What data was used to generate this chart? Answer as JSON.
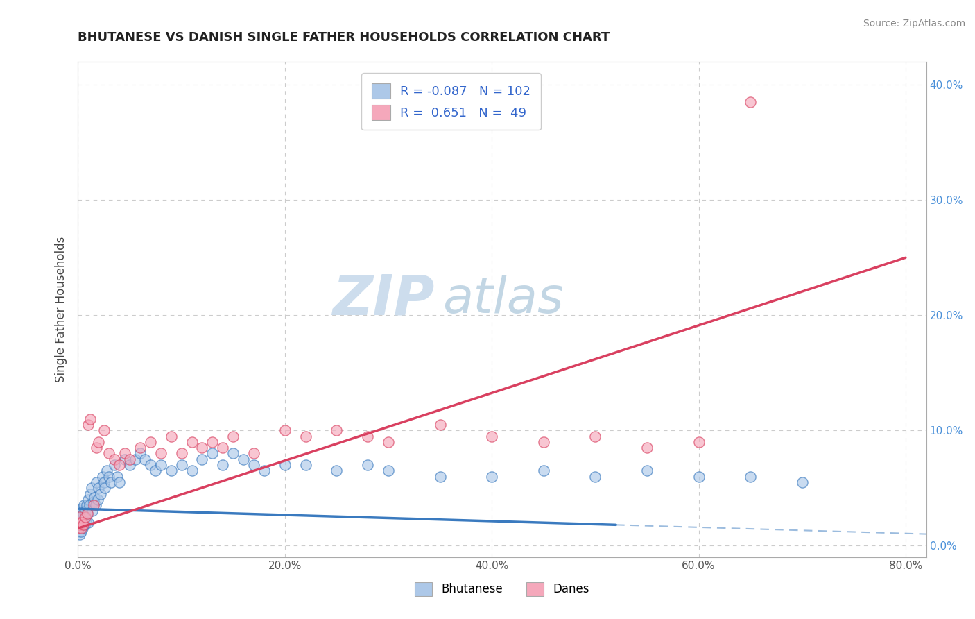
{
  "title": "BHUTANESE VS DANISH SINGLE FATHER HOUSEHOLDS CORRELATION CHART",
  "source": "Source: ZipAtlas.com",
  "xlabel_vals": [
    0.0,
    20.0,
    40.0,
    60.0,
    80.0
  ],
  "ylabel": "Single Father Households",
  "ylabel_vals": [
    0.0,
    10.0,
    20.0,
    30.0,
    40.0
  ],
  "xlim": [
    0.0,
    82.0
  ],
  "ylim": [
    -1.0,
    42.0
  ],
  "bhutanese_color": "#adc8e8",
  "danes_color": "#f5a8bb",
  "bhutanese_line_color": "#3a7abf",
  "danes_line_color": "#d94060",
  "bhutanese_R": -0.087,
  "bhutanese_N": 102,
  "danes_R": 0.651,
  "danes_N": 49,
  "legend_text_color": "#3366cc",
  "watermark_zip": "ZIP",
  "watermark_atlas": "atlas",
  "watermark_color_zip": "#ccdcec",
  "watermark_color_atlas": "#b8cfe0",
  "background_color": "#ffffff",
  "grid_color": "#cccccc",
  "bhutanese_scatter_x": [
    0.05,
    0.08,
    0.1,
    0.12,
    0.15,
    0.18,
    0.2,
    0.22,
    0.25,
    0.28,
    0.3,
    0.32,
    0.35,
    0.38,
    0.4,
    0.42,
    0.45,
    0.48,
    0.5,
    0.55,
    0.6,
    0.65,
    0.7,
    0.75,
    0.8,
    0.85,
    0.9,
    0.95,
    1.0,
    1.1,
    1.2,
    1.3,
    1.4,
    1.5,
    1.6,
    1.7,
    1.8,
    1.9,
    2.0,
    2.2,
    2.4,
    2.5,
    2.6,
    2.8,
    3.0,
    3.2,
    3.5,
    3.8,
    4.0,
    4.5,
    5.0,
    5.5,
    6.0,
    6.5,
    7.0,
    7.5,
    8.0,
    9.0,
    10.0,
    11.0,
    12.0,
    13.0,
    14.0,
    15.0,
    16.0,
    17.0,
    18.0,
    20.0,
    22.0,
    25.0,
    28.0,
    30.0,
    35.0,
    40.0,
    45.0,
    50.0,
    55.0,
    60.0,
    65.0,
    70.0
  ],
  "bhutanese_scatter_y": [
    1.5,
    2.0,
    1.2,
    2.5,
    1.8,
    2.2,
    1.0,
    3.0,
    2.0,
    1.5,
    2.8,
    1.2,
    2.5,
    1.8,
    3.2,
    2.0,
    1.5,
    2.8,
    2.2,
    3.5,
    2.0,
    1.8,
    3.0,
    2.5,
    2.0,
    3.5,
    2.8,
    2.0,
    4.0,
    3.5,
    4.5,
    5.0,
    3.0,
    3.8,
    4.2,
    3.5,
    5.5,
    4.0,
    5.0,
    4.5,
    6.0,
    5.5,
    5.0,
    6.5,
    6.0,
    5.5,
    7.0,
    6.0,
    5.5,
    7.5,
    7.0,
    7.5,
    8.0,
    7.5,
    7.0,
    6.5,
    7.0,
    6.5,
    7.0,
    6.5,
    7.5,
    8.0,
    7.0,
    8.0,
    7.5,
    7.0,
    6.5,
    7.0,
    7.0,
    6.5,
    7.0,
    6.5,
    6.0,
    6.0,
    6.5,
    6.0,
    6.5,
    6.0,
    6.0,
    5.5
  ],
  "danes_scatter_x": [
    0.05,
    0.1,
    0.15,
    0.2,
    0.25,
    0.3,
    0.4,
    0.5,
    0.7,
    0.9,
    1.0,
    1.2,
    1.5,
    1.8,
    2.0,
    2.5,
    3.0,
    3.5,
    4.0,
    4.5,
    5.0,
    6.0,
    7.0,
    8.0,
    9.0,
    10.0,
    11.0,
    12.0,
    13.0,
    14.0,
    15.0,
    17.0,
    20.0,
    22.0,
    25.0,
    28.0,
    30.0,
    35.0,
    40.0,
    45.0,
    50.0,
    55.0,
    60.0
  ],
  "danes_scatter_y": [
    1.5,
    2.0,
    1.8,
    2.5,
    2.0,
    1.5,
    2.0,
    1.8,
    2.5,
    2.8,
    10.5,
    11.0,
    3.5,
    8.5,
    9.0,
    10.0,
    8.0,
    7.5,
    7.0,
    8.0,
    7.5,
    8.5,
    9.0,
    8.0,
    9.5,
    8.0,
    9.0,
    8.5,
    9.0,
    8.5,
    9.5,
    8.0,
    10.0,
    9.5,
    10.0,
    9.5,
    9.0,
    10.5,
    9.5,
    9.0,
    9.5,
    8.5,
    9.0
  ],
  "danes_outlier_x": 65.0,
  "danes_outlier_y": 38.5,
  "blue_line_x0": 0.0,
  "blue_line_y0": 3.2,
  "blue_line_x1": 52.0,
  "blue_line_y1": 1.8,
  "blue_dash_x0": 52.0,
  "blue_dash_y0": 1.8,
  "blue_dash_x1": 82.0,
  "blue_dash_y1": 1.0,
  "pink_line_x0": 0.0,
  "pink_line_y0": 1.5,
  "pink_line_x1": 80.0,
  "pink_line_y1": 25.0
}
